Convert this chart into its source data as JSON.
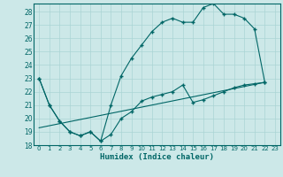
{
  "xlabel": "Humidex (Indice chaleur)",
  "bg_color": "#cce8e8",
  "line_color": "#006666",
  "grid_color": "#aad4d4",
  "xlim": [
    -0.5,
    23.5
  ],
  "ylim": [
    18,
    28.6
  ],
  "yticks": [
    18,
    19,
    20,
    21,
    22,
    23,
    24,
    25,
    26,
    27,
    28
  ],
  "xticks": [
    0,
    1,
    2,
    3,
    4,
    5,
    6,
    7,
    8,
    9,
    10,
    11,
    12,
    13,
    14,
    15,
    16,
    17,
    18,
    19,
    20,
    21,
    22,
    23
  ],
  "curve1_x": [
    0,
    1,
    2,
    3,
    4,
    5,
    6,
    7,
    8,
    9,
    10,
    11,
    12,
    13,
    14,
    15,
    16,
    17,
    18,
    19,
    20,
    21,
    22
  ],
  "curve1_y": [
    23.0,
    21.0,
    19.8,
    19.0,
    18.7,
    19.0,
    18.3,
    21.0,
    23.2,
    24.5,
    25.5,
    26.5,
    27.2,
    27.5,
    27.2,
    27.2,
    28.3,
    28.6,
    27.8,
    27.8,
    27.5,
    26.7,
    22.7
  ],
  "curve2_x": [
    0,
    1,
    2,
    3,
    4,
    5,
    6,
    7,
    8,
    9,
    10,
    11,
    12,
    13,
    14,
    15,
    16,
    17,
    18,
    19,
    20,
    21,
    22
  ],
  "curve2_y": [
    23.0,
    21.0,
    19.8,
    19.0,
    18.7,
    19.0,
    18.3,
    18.8,
    20.0,
    20.5,
    21.3,
    21.6,
    21.8,
    22.0,
    22.5,
    21.2,
    21.4,
    21.7,
    22.0,
    22.3,
    22.5,
    22.6,
    22.7
  ],
  "curve3_x": [
    0,
    22
  ],
  "curve3_y": [
    19.3,
    22.7
  ]
}
